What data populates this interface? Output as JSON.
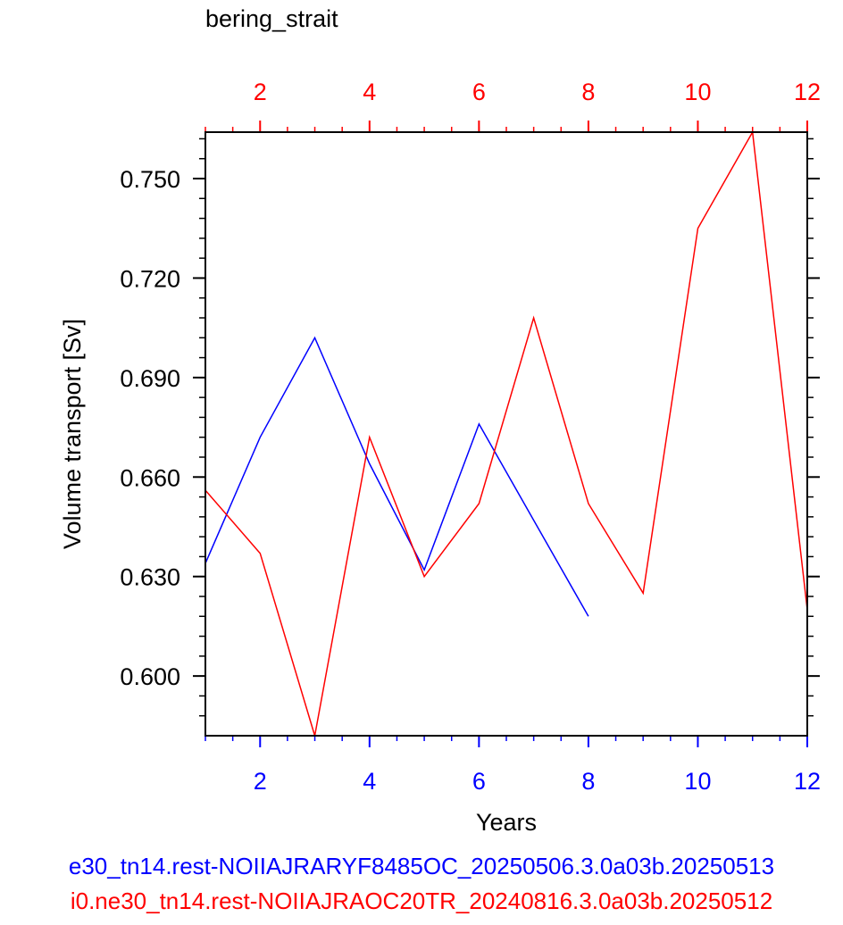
{
  "chart_data": {
    "type": "line",
    "title": "bering_strait",
    "xlabel": "Years",
    "ylabel": "Volume transport [Sv]",
    "xlim": [
      1,
      12
    ],
    "ylim": [
      0.582,
      0.764
    ],
    "yticks": [
      "0.600",
      "0.630",
      "0.660",
      "0.690",
      "0.720",
      "0.750"
    ],
    "x_bottom_ticks": [
      "2",
      "4",
      "6",
      "8",
      "10",
      "12"
    ],
    "x_top_ticks": [
      "2",
      "4",
      "6",
      "8",
      "10",
      "12"
    ],
    "grid": false,
    "series": [
      {
        "name": "e30_tn14.rest-NOIIAJRARYF8485OC_20250506.3.0a03b.20250513",
        "color": "#0000ff",
        "x": [
          1,
          2,
          3,
          4,
          5,
          6,
          7,
          8
        ],
        "y": [
          0.634,
          0.672,
          0.702,
          0.664,
          0.632,
          0.676,
          0.647,
          0.618
        ]
      },
      {
        "name": "i0.ne30_tn14.rest-NOIIAJRAOC20TR_20240816.3.0a03b.20250512",
        "color": "#ff0000",
        "x": [
          1,
          2,
          3,
          4,
          5,
          6,
          7,
          8,
          9,
          10,
          11,
          12
        ],
        "y": [
          0.656,
          0.637,
          0.582,
          0.672,
          0.63,
          0.652,
          0.708,
          0.652,
          0.625,
          0.735,
          0.764,
          0.62
        ]
      }
    ]
  }
}
